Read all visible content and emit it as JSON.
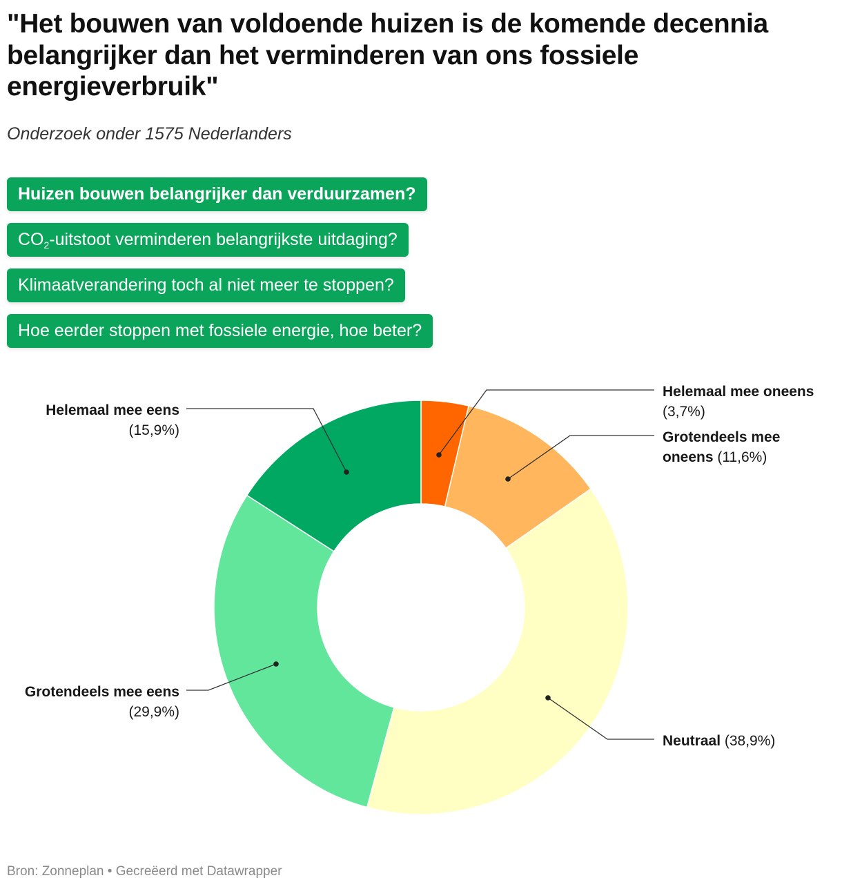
{
  "header": {
    "title": "\"Het bouwen van voldoende huizen is de komende decennia belangrijker dan het verminderen van ons fossiele energieverbruik\"",
    "subtitle": "Onderzoek onder 1575 Nederlanders"
  },
  "tabs": [
    {
      "label": "Huizen bouwen belangrijker dan verduurzamen?",
      "active": true
    },
    {
      "label_pre": "CO",
      "label_sub": "2",
      "label_post": "-uitstoot verminderen belangrijkste uitdaging?",
      "active": false
    },
    {
      "label": "Klimaatverandering toch al niet meer te stoppen?",
      "active": false
    },
    {
      "label": "Hoe eerder stoppen met fossiele energie, hoe beter?",
      "active": false
    }
  ],
  "chart_data": {
    "type": "pie",
    "donut": true,
    "slices": [
      {
        "label": "Helemaal mee oneens",
        "value": 3.7,
        "value_label": "(3,7%)",
        "color": "#ff6600"
      },
      {
        "label": "Grotendeels mee oneens",
        "value": 11.6,
        "value_label": "(11,6%)",
        "color": "#ffb65c"
      },
      {
        "label": "Neutraal",
        "value": 38.9,
        "value_label": "(38,9%)",
        "color": "#ffffc4"
      },
      {
        "label": "Grotendeels mee eens",
        "value": 29.9,
        "value_label": "(29,9%)",
        "color": "#62e69b"
      },
      {
        "label": "Helemaal mee eens",
        "value": 15.9,
        "value_label": "(15,9%)",
        "color": "#00a862"
      }
    ]
  },
  "footer": {
    "source": "Bron: Zonneplan • Gecreëerd met Datawrapper"
  }
}
